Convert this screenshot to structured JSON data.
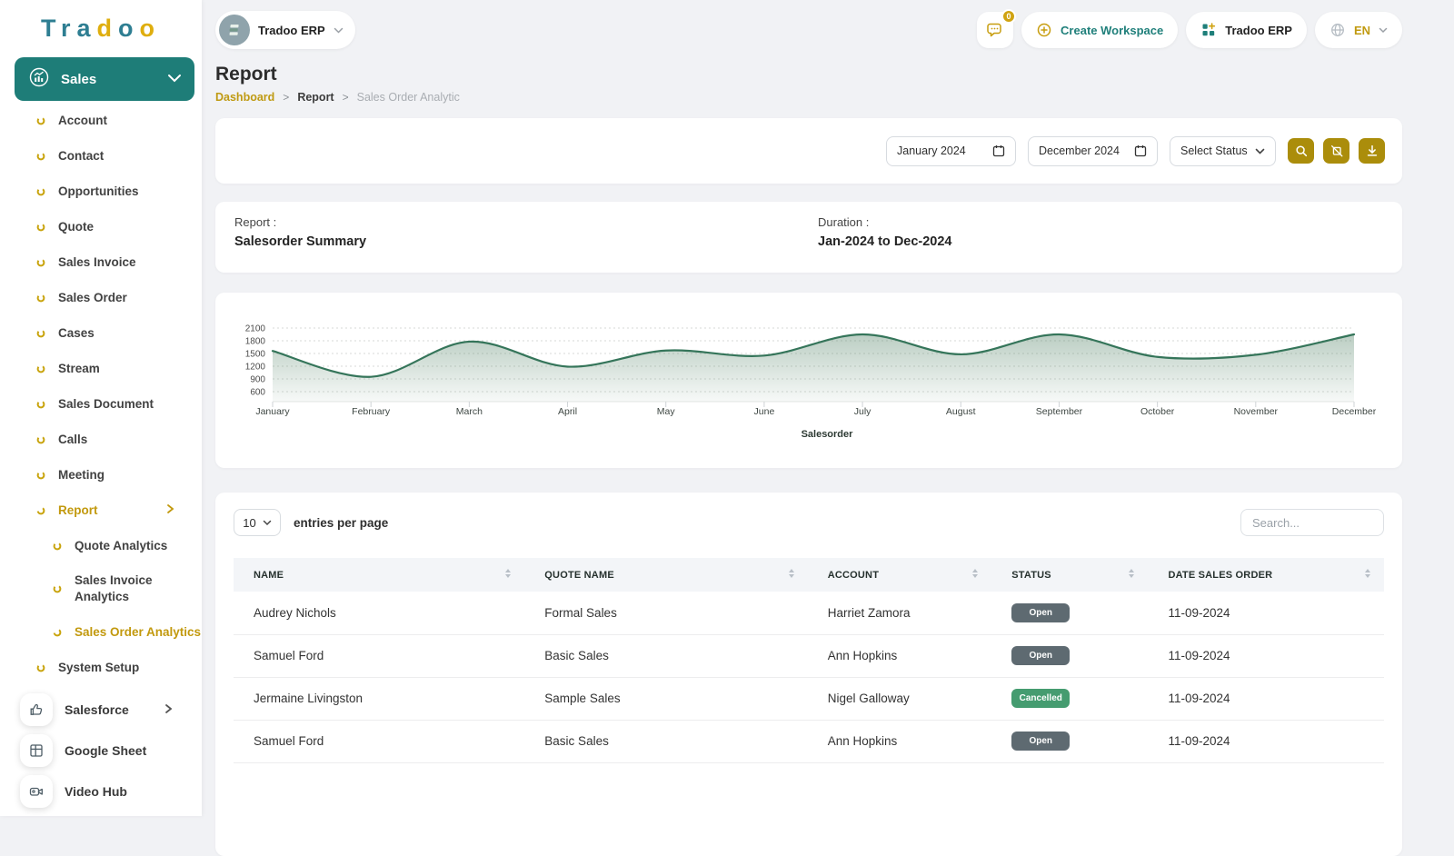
{
  "brand": {
    "logo_letters": [
      "T",
      "r",
      "a",
      "d",
      "o",
      "o"
    ],
    "logo_colors": [
      "#2e7e92",
      "#2e7e92",
      "#2e7e92",
      "#dfae0e",
      "#2e7e92",
      "#dfae0e"
    ]
  },
  "topbar": {
    "workspace_pill": "Tradoo ERP",
    "notification_count": "0",
    "create_workspace": "Create Workspace",
    "workspace_button": "Tradoo ERP",
    "language": "EN"
  },
  "sidebar": {
    "section_label": "Sales",
    "items": [
      "Account",
      "Contact",
      "Opportunities",
      "Quote",
      "Sales Invoice",
      "Sales Order",
      "Cases",
      "Stream",
      "Sales Document",
      "Calls",
      "Meeting"
    ],
    "report": {
      "label": "Report",
      "children": [
        "Quote Analytics",
        "Sales Invoice Analytics",
        "Sales Order Analytics"
      ],
      "active_child": "Sales Order Analytics"
    },
    "system_setup": "System Setup",
    "footer_items": [
      "Salesforce",
      "Google Sheet",
      "Video Hub"
    ]
  },
  "page": {
    "title": "Report",
    "breadcrumb": [
      "Dashboard",
      "Report",
      "Sales Order Analytic"
    ],
    "breadcrumb_separator": ">"
  },
  "filters": {
    "from_date": "January 2024",
    "to_date": "December 2024",
    "status": "Select Status"
  },
  "report_info": {
    "report_label": "Report :",
    "report_value": "Salesorder Summary",
    "duration_label": "Duration :",
    "duration_value": "Jan-2024 to Dec-2024"
  },
  "chart_data": {
    "type": "area",
    "title": "Salesorder Summary Jan-2024 to Dec-2024",
    "x": [
      "January",
      "February",
      "March",
      "April",
      "May",
      "June",
      "July",
      "August",
      "September",
      "October",
      "November",
      "December"
    ],
    "series": [
      {
        "name": "Salesorder",
        "values": [
          1560,
          950,
          1780,
          1190,
          1570,
          1450,
          1950,
          1480,
          1950,
          1420,
          1470,
          1950
        ]
      }
    ],
    "yticks": [
      600,
      900,
      1200,
      1500,
      1800,
      2100
    ],
    "ylim": [
      600,
      2100
    ],
    "xlabel": "Salesorder",
    "ylabel": "",
    "grid": "dashed-horizontal",
    "legend_position": "none",
    "line_color": "#35755a",
    "fill_color": "#5d8a70"
  },
  "table": {
    "page_size": "10",
    "entries_label": "entries per page",
    "search_placeholder": "Search...",
    "columns": [
      "NAME",
      "QUOTE NAME",
      "ACCOUNT",
      "STATUS",
      "DATE SALES ORDER"
    ],
    "rows": [
      {
        "name": "Audrey Nichols",
        "quote": "Formal Sales",
        "account": "Harriet Zamora",
        "status": "Open",
        "date": "11-09-2024"
      },
      {
        "name": "Samuel Ford",
        "quote": "Basic Sales",
        "account": "Ann Hopkins",
        "status": "Open",
        "date": "11-09-2024"
      },
      {
        "name": "Jermaine Livingston",
        "quote": "Sample Sales",
        "account": "Nigel Galloway",
        "status": "Cancelled",
        "date": "11-09-2024"
      },
      {
        "name": "Samuel Ford",
        "quote": "Basic Sales",
        "account": "Ann Hopkins",
        "status": "Open",
        "date": "11-09-2024"
      }
    ],
    "status_colors": {
      "Open": "#5e6a71",
      "Cancelled": "#459c70"
    }
  }
}
